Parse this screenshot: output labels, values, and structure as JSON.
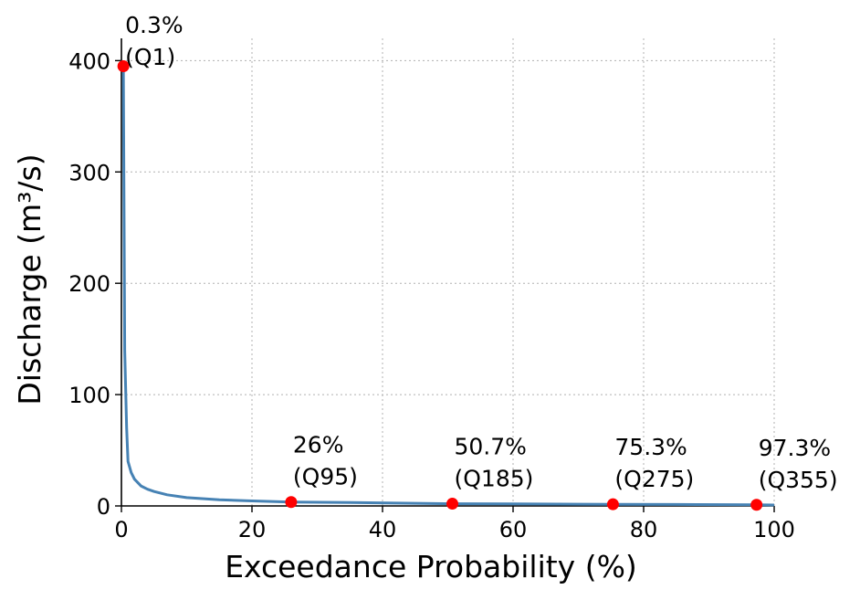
{
  "chart_data": {
    "type": "line",
    "title": "",
    "xlabel": "Exceedance Probability (%)",
    "ylabel": "Discharge (m³/s)",
    "xlim": [
      0,
      100
    ],
    "ylim": [
      0,
      420
    ],
    "xticks": [
      0,
      20,
      40,
      60,
      80,
      100
    ],
    "yticks": [
      0,
      100,
      200,
      300,
      400
    ],
    "grid": true,
    "line_color": "#4682b4",
    "marker_color": "#ff0000",
    "series": [
      {
        "x": [
          0.0,
          0.3,
          0.5,
          0.8,
          1.0,
          1.5,
          2.0,
          3.0,
          4.0,
          5.0,
          7.0,
          10.0,
          15.0,
          20.0,
          26.0,
          35.0,
          50.7,
          60.0,
          75.3,
          85.0,
          97.3,
          100.0
        ],
        "y": [
          400,
          395,
          140,
          70,
          40,
          30,
          24,
          18,
          15,
          13,
          10,
          7.5,
          5.5,
          4.5,
          3.5,
          3.0,
          2.0,
          1.8,
          1.5,
          1.3,
          1.0,
          0.8
        ]
      }
    ],
    "points": [
      {
        "x": 0.3,
        "y": 395,
        "label": "0.3%",
        "sublabel": "(Q1)"
      },
      {
        "x": 26,
        "y": 3.5,
        "label": "26%",
        "sublabel": "(Q95)"
      },
      {
        "x": 50.7,
        "y": 2.0,
        "label": "50.7%",
        "sublabel": "(Q185)"
      },
      {
        "x": 75.3,
        "y": 1.5,
        "label": "75.3%",
        "sublabel": "(Q275)"
      },
      {
        "x": 97.3,
        "y": 1.0,
        "label": "97.3%",
        "sublabel": "(Q355)"
      }
    ]
  }
}
